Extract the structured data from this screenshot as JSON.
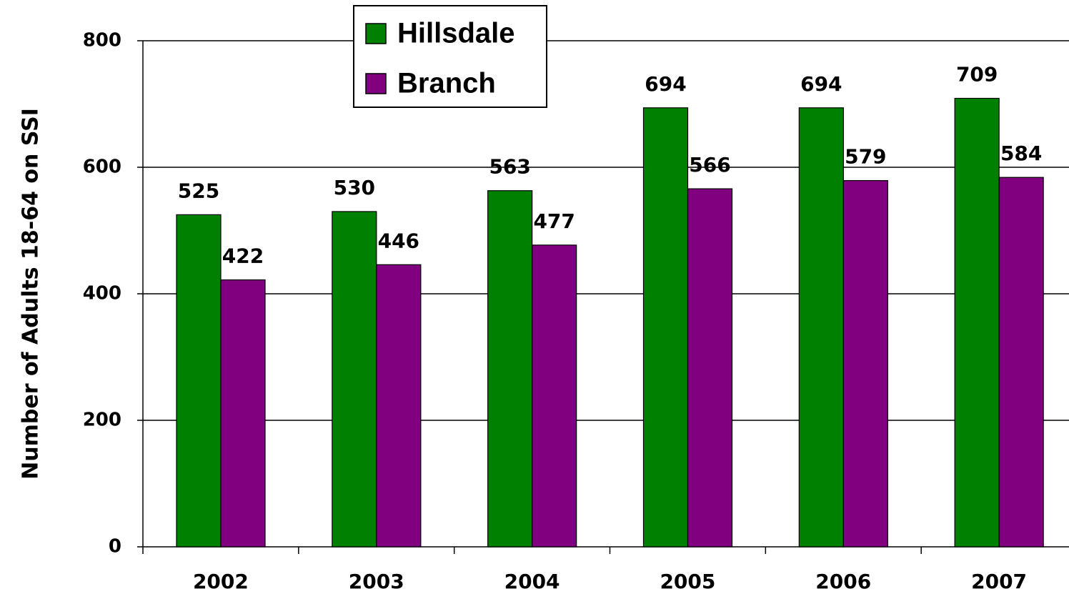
{
  "chart_data": {
    "type": "bar",
    "y_label": "Number of Adults 18-64 on SSI",
    "categories": [
      "2002",
      "2003",
      "2004",
      "2005",
      "2006",
      "2007"
    ],
    "series": [
      {
        "name": "Hillsdale",
        "color": "#008000",
        "values": [
          525,
          530,
          563,
          694,
          694,
          709
        ]
      },
      {
        "name": "Branch",
        "color": "#800080",
        "values": [
          422,
          446,
          477,
          566,
          579,
          584
        ]
      }
    ],
    "ylim": [
      0,
      800
    ],
    "yticks": [
      0,
      200,
      400,
      600,
      800
    ],
    "grid": true
  }
}
